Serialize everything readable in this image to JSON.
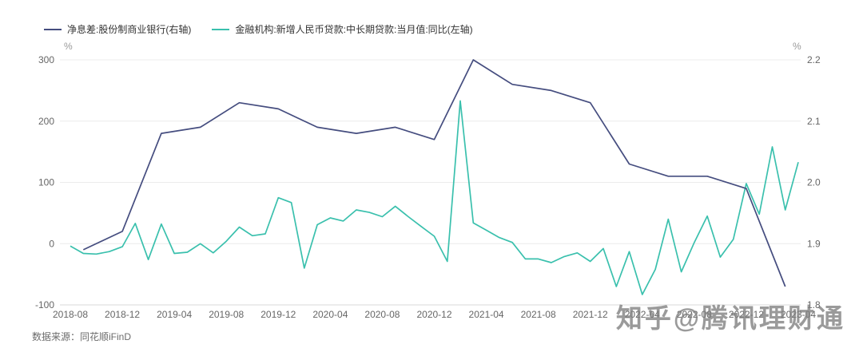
{
  "watermark_text": "知乎@腾讯理财通",
  "source_note": "数据来源：同花顺iFinD",
  "legend": [
    {
      "label": "净息差:股份制商业银行(右轴)",
      "color": "#454d7f"
    },
    {
      "label": "金融机构:新增人民币贷款:中长期贷款:当月值:同比(左轴)",
      "color": "#3ac0ad"
    }
  ],
  "chart_data": {
    "type": "line",
    "title": "",
    "grid": true,
    "legend_position": "top-left",
    "x_axis": {
      "tick_labels": [
        "2018-08",
        "2018-12",
        "2019-04",
        "2019-08",
        "2019-12",
        "2020-04",
        "2020-08",
        "2020-12",
        "2021-04",
        "2021-08",
        "2021-12",
        "2022-04",
        "2022-08",
        "2022-12",
        "2023-04"
      ],
      "tick_interval_months": 4
    },
    "left_axis": {
      "unit": "%",
      "min": -100,
      "max": 300,
      "ticks": [
        "300",
        "200",
        "100",
        "0",
        "-100"
      ]
    },
    "right_axis": {
      "unit": "%",
      "min": 1.8,
      "max": 2.2,
      "ticks": [
        "2.2",
        "2.1",
        "2.0",
        "1.9",
        "1.8"
      ]
    },
    "months": [
      "2018-08",
      "2018-09",
      "2018-10",
      "2018-11",
      "2018-12",
      "2019-01",
      "2019-02",
      "2019-03",
      "2019-04",
      "2019-05",
      "2019-06",
      "2019-07",
      "2019-08",
      "2019-09",
      "2019-10",
      "2019-11",
      "2019-12",
      "2020-01",
      "2020-02",
      "2020-03",
      "2020-04",
      "2020-05",
      "2020-06",
      "2020-07",
      "2020-08",
      "2020-09",
      "2020-10",
      "2020-11",
      "2020-12",
      "2021-01",
      "2021-02",
      "2021-03",
      "2021-04",
      "2021-05",
      "2021-06",
      "2021-07",
      "2021-08",
      "2021-09",
      "2021-10",
      "2021-11",
      "2021-12",
      "2022-01",
      "2022-02",
      "2022-03",
      "2022-04",
      "2022-05",
      "2022-06",
      "2022-07",
      "2022-08",
      "2022-09",
      "2022-10",
      "2022-11",
      "2022-12",
      "2023-01",
      "2023-02",
      "2023-03",
      "2023-04"
    ],
    "series": [
      {
        "name": "金融机构:新增人民币贷款:中长期贷款:当月值:同比(左轴)",
        "axis": "left",
        "color": "#3ac0ad",
        "frequency": "monthly",
        "values": [
          -4,
          -16,
          -17,
          -13,
          -5,
          33,
          -26,
          32,
          -16,
          -14,
          0,
          -15,
          4,
          27,
          13,
          16,
          75,
          67,
          -40,
          31,
          42,
          37,
          55,
          51,
          44,
          61,
          44,
          28,
          12,
          -29,
          233,
          34,
          22,
          10,
          2,
          -25,
          -25,
          -31,
          -21,
          -15,
          -29,
          -8,
          -70,
          -13,
          -83,
          -42,
          40,
          -46,
          2,
          45,
          -22,
          7,
          98,
          48,
          158,
          55,
          133
        ]
      },
      {
        "name": "净息差:股份制商业银行(右轴)",
        "axis": "right",
        "color": "#454d7f",
        "frequency": "quarterly",
        "points": [
          {
            "date": "2018-09",
            "value": 1.89
          },
          {
            "date": "2018-12",
            "value": 1.92
          },
          {
            "date": "2019-03",
            "value": 2.08
          },
          {
            "date": "2019-06",
            "value": 2.09
          },
          {
            "date": "2019-09",
            "value": 2.13
          },
          {
            "date": "2019-12",
            "value": 2.12
          },
          {
            "date": "2020-03",
            "value": 2.09
          },
          {
            "date": "2020-06",
            "value": 2.08
          },
          {
            "date": "2020-09",
            "value": 2.09
          },
          {
            "date": "2020-12",
            "value": 2.07
          },
          {
            "date": "2021-03",
            "value": 2.2
          },
          {
            "date": "2021-06",
            "value": 2.16
          },
          {
            "date": "2021-09",
            "value": 2.15
          },
          {
            "date": "2021-12",
            "value": 2.13
          },
          {
            "date": "2022-03",
            "value": 2.03
          },
          {
            "date": "2022-06",
            "value": 2.01
          },
          {
            "date": "2022-09",
            "value": 2.01
          },
          {
            "date": "2022-12",
            "value": 1.99
          },
          {
            "date": "2023-03",
            "value": 1.83
          }
        ]
      }
    ]
  }
}
